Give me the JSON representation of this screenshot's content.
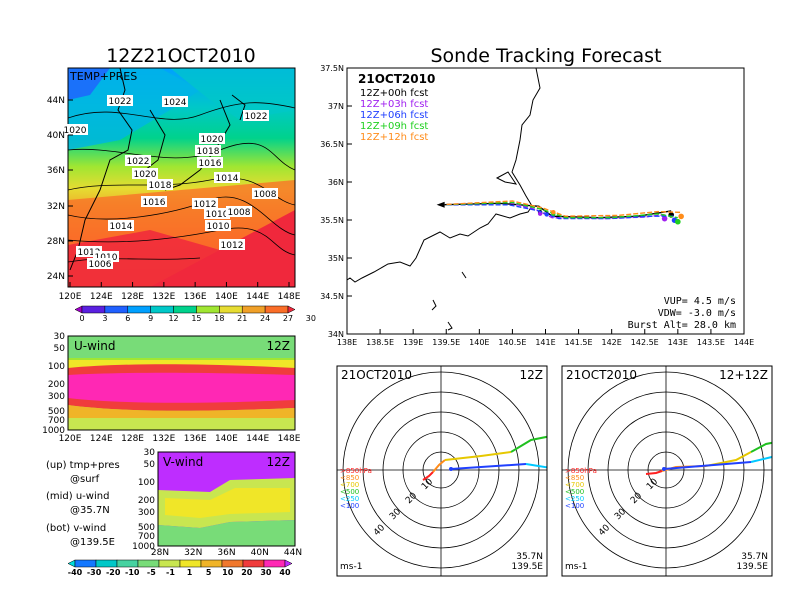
{
  "page": {
    "title_left": "12Z21OCT2010",
    "title_right": "Sonde Tracking Forecast"
  },
  "colors": {
    "blue": "#2040ff",
    "black": "#000000",
    "purple": "#a020f0",
    "green": "#20d020",
    "orange": "#ff8c1a",
    "tempbar": [
      "#a000c8",
      "#5a20e0",
      "#2060ff",
      "#00a0ff",
      "#00c8c8",
      "#00d28c",
      "#a0e632",
      "#e6dc32",
      "#f0a028",
      "#fa6e28",
      "#f0283c"
    ],
    "windbar": [
      "#00dcdc",
      "#1478ff",
      "#00c8c8",
      "#46d2a0",
      "#78dc78",
      "#c8e650",
      "#f0e628",
      "#f0b428",
      "#f0782d",
      "#f03c3c",
      "#ff28b4",
      "#be2dff"
    ]
  },
  "chart_data": [
    {
      "type": "heatmap",
      "name": "temp-pres-map",
      "label": "TEMP+PRES",
      "x_ticks": [
        "120E",
        "124E",
        "128E",
        "132E",
        "136E",
        "140E",
        "144E",
        "148E"
      ],
      "y_ticks": [
        "44N",
        "40N",
        "36N",
        "32N",
        "28N",
        "24N"
      ],
      "contour_labels": [
        "1022",
        "1024",
        "1022",
        "1020",
        "1020",
        "1022",
        "1018",
        "1020",
        "1016",
        "1018",
        "1014",
        "1016",
        "1008",
        "1012",
        "1010",
        "1008",
        "1014",
        "1010",
        "1012",
        "1012",
        "1010",
        "1006"
      ],
      "colorbar_ticks": [
        "0",
        "3",
        "6",
        "9",
        "12",
        "15",
        "18",
        "21",
        "24",
        "27",
        "30"
      ]
    },
    {
      "type": "heatmap",
      "name": "u-wind-section",
      "label": "U-wind",
      "time": "12Z",
      "x_ticks": [
        "120E",
        "124E",
        "128E",
        "132E",
        "136E",
        "140E",
        "144E",
        "148E"
      ],
      "y_ticks": [
        "30",
        "50",
        "100",
        "200",
        "300",
        "500",
        "700",
        "1000"
      ]
    },
    {
      "type": "heatmap",
      "name": "v-wind-section",
      "label": "V-wind",
      "time": "12Z",
      "x_ticks": [
        "28N",
        "32N",
        "36N",
        "40N",
        "44N"
      ],
      "y_ticks": [
        "30",
        "50",
        "100",
        "200",
        "300",
        "500",
        "700",
        "1000"
      ],
      "colorbar_ticks": [
        "-40",
        "-30",
        "-20",
        "-10",
        "-5",
        "-1",
        "1",
        "5",
        "10",
        "20",
        "30",
        "40"
      ]
    },
    {
      "type": "line",
      "name": "sonde-track",
      "date": "21OCT2010",
      "legend": [
        {
          "label": "12Z+00h fcst",
          "color": "#000000"
        },
        {
          "label": "12Z+03h fcst",
          "color": "#a020f0"
        },
        {
          "label": "12Z+06h fcst",
          "color": "#2040ff"
        },
        {
          "label": "12Z+09h fcst",
          "color": "#20d020"
        },
        {
          "label": "12Z+12h fcst",
          "color": "#ff8c1a"
        }
      ],
      "x_ticks": [
        "138E",
        "138.5E",
        "139E",
        "139.5E",
        "140E",
        "140.5E",
        "141E",
        "141.5E",
        "142E",
        "142.5E",
        "143E",
        "143.5E",
        "144E"
      ],
      "y_ticks": [
        "37.5N",
        "37N",
        "36.5N",
        "36N",
        "35.5N",
        "35N",
        "34.5N",
        "34N"
      ],
      "xlim": [
        138,
        144
      ],
      "ylim": [
        34,
        37.5
      ],
      "start": [
        139.4,
        35.7
      ],
      "tracks": [
        {
          "color": "#000000",
          "points": [
            [
              139.4,
              35.7
            ],
            [
              140.3,
              35.72
            ],
            [
              140.9,
              35.68
            ],
            [
              141.1,
              35.55
            ],
            [
              141.8,
              35.53
            ],
            [
              142.4,
              35.55
            ],
            [
              142.9,
              35.62
            ]
          ]
        },
        {
          "color": "#a020f0",
          "points": [
            [
              139.4,
              35.7
            ],
            [
              140.4,
              35.74
            ],
            [
              140.85,
              35.64
            ],
            [
              141.1,
              35.53
            ],
            [
              141.9,
              35.52
            ],
            [
              142.5,
              35.54
            ],
            [
              142.8,
              35.57
            ]
          ]
        },
        {
          "color": "#2040ff",
          "points": [
            [
              139.4,
              35.7
            ],
            [
              140.45,
              35.7
            ],
            [
              140.9,
              35.62
            ],
            [
              141.2,
              35.52
            ],
            [
              142.0,
              35.52
            ],
            [
              142.6,
              35.55
            ],
            [
              142.95,
              35.55
            ]
          ]
        },
        {
          "color": "#20d020",
          "points": [
            [
              139.4,
              35.7
            ],
            [
              140.5,
              35.73
            ],
            [
              140.95,
              35.64
            ],
            [
              141.3,
              35.53
            ],
            [
              142.0,
              35.53
            ],
            [
              142.7,
              35.58
            ],
            [
              143.0,
              35.53
            ]
          ]
        },
        {
          "color": "#ff8c1a",
          "points": [
            [
              139.4,
              35.7
            ],
            [
              140.5,
              35.75
            ],
            [
              140.95,
              35.66
            ],
            [
              141.3,
              35.55
            ],
            [
              142.1,
              35.56
            ],
            [
              142.7,
              35.61
            ],
            [
              143.05,
              35.6
            ]
          ]
        }
      ],
      "info": {
        "vup": "VUP=  4.5 m/s",
        "vdw": "VDW= -3.0 m/s",
        "burst": "Burst Alt= 28.0 km"
      }
    },
    {
      "type": "line",
      "name": "hodograph-12z",
      "date": "21OCT2010",
      "time": "12Z",
      "ring_labels": [
        "10",
        "20",
        "30",
        "40"
      ],
      "levels": [
        {
          "label": ">850hPa",
          "color": "#ff2020"
        },
        {
          "label": "<850",
          "color": "#ff8c1a"
        },
        {
          "label": "<700",
          "color": "#e6c800"
        },
        {
          "label": "<500",
          "color": "#20c020"
        },
        {
          "label": "<250",
          "color": "#00c8ff"
        },
        {
          "label": "<100",
          "color": "#2040ff"
        }
      ],
      "lat": "35.7N",
      "lon": "139.5E",
      "units": "ms-1"
    },
    {
      "type": "line",
      "name": "hodograph-12z12",
      "date": "21OCT2010",
      "time": "12+12Z",
      "ring_labels": [
        "10",
        "20",
        "30",
        "40"
      ],
      "levels": [
        {
          "label": ">850hPa",
          "color": "#ff2020"
        },
        {
          "label": "<850",
          "color": "#ff8c1a"
        },
        {
          "label": "<700",
          "color": "#e6c800"
        },
        {
          "label": "<500",
          "color": "#20c020"
        },
        {
          "label": "<250",
          "color": "#00c8ff"
        },
        {
          "label": "<100",
          "color": "#2040ff"
        }
      ],
      "lat": "35.7N",
      "lon": "139.5E",
      "units": "ms-1"
    }
  ],
  "notes": {
    "up": "(up) tmp+pres",
    "up2": "@surf",
    "mid": "(mid) u-wind",
    "mid2": "@35.7N",
    "bot": "(bot) v-wind",
    "bot2": "@139.5E"
  }
}
